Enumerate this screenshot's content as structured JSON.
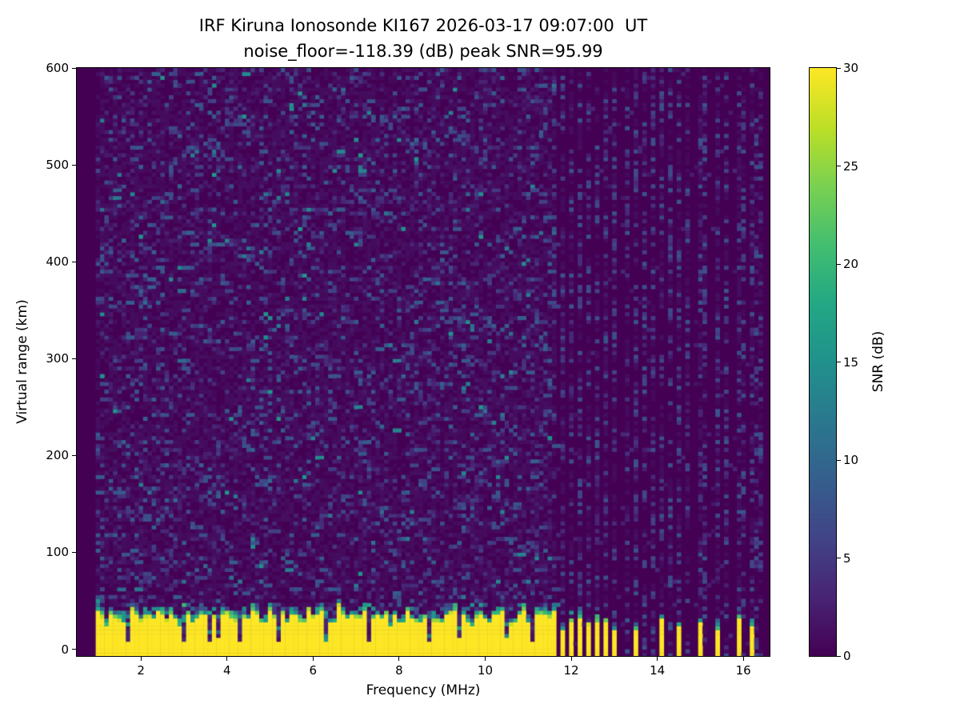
{
  "colors": {
    "figure_bg": "#ffffff",
    "plot_bg_snr0": "#440154",
    "saturated_snr30": "#fde725",
    "text": "#000000",
    "axis": "#000000"
  },
  "chart_data": {
    "type": "heatmap",
    "title": "IRF Kiruna Ionosonde KI167 2026-03-17 09:07:00  UT",
    "subtitle": "noise_floor=-118.39 (dB) peak SNR=95.99",
    "xlabel": "Frequency (MHz)",
    "ylabel": "Virtual range (km)",
    "xlim": [
      0.51,
      16.61
    ],
    "ylim": [
      -7,
      600
    ],
    "xticks": [
      2,
      4,
      6,
      8,
      10,
      12,
      14,
      16
    ],
    "yticks": [
      0,
      100,
      200,
      300,
      400,
      500,
      600
    ],
    "grid": false,
    "colorbar": {
      "label": "SNR (dB)",
      "min": 0,
      "max": 30,
      "ticks": [
        0,
        5,
        10,
        15,
        20,
        25,
        30
      ],
      "colormap": "viridis"
    },
    "sweep": {
      "freq_start_mhz": 1.0,
      "freq_end_mhz": 16.4,
      "freq_step_mhz": 0.1,
      "range_step_km": 4
    },
    "features": {
      "noise_floor_db": -118.39,
      "peak_snr_db": 95.99,
      "ground_clutter_band": {
        "snr_db": 30,
        "top_km_min": 22,
        "top_km_max": 38,
        "continuous_up_to_mhz": 11.6
      },
      "interleaved_bars": {
        "from_mhz": 11.6,
        "to_mhz": 13.0,
        "spacing_mhz": 0.2
      },
      "isolated_bars_mhz": [
        13.5,
        14.1,
        14.5,
        15.0,
        15.4,
        15.9,
        16.2
      ],
      "faint_noise_stripes_mhz": [
        13.3,
        13.7,
        13.9,
        14.3,
        14.7,
        15.1,
        15.6,
        16.0,
        16.35
      ],
      "clutter_notches_mhz": [
        1.7,
        3.0,
        3.6,
        3.8,
        4.3,
        5.2,
        6.3,
        7.3,
        8.7,
        9.4,
        10.5,
        11.1
      ],
      "background_speckle": {
        "density": 0.2,
        "max_snr_db": 16
      }
    },
    "viridis_stops": [
      [
        0.0,
        68,
        1,
        84
      ],
      [
        0.1,
        72,
        36,
        117
      ],
      [
        0.2,
        65,
        68,
        135
      ],
      [
        0.3,
        53,
        95,
        141
      ],
      [
        0.4,
        42,
        120,
        142
      ],
      [
        0.5,
        33,
        145,
        140
      ],
      [
        0.6,
        34,
        168,
        132
      ],
      [
        0.7,
        68,
        190,
        112
      ],
      [
        0.8,
        122,
        209,
        81
      ],
      [
        0.9,
        189,
        223,
        38
      ],
      [
        1.0,
        253,
        231,
        37
      ]
    ],
    "render_seed": 167
  }
}
